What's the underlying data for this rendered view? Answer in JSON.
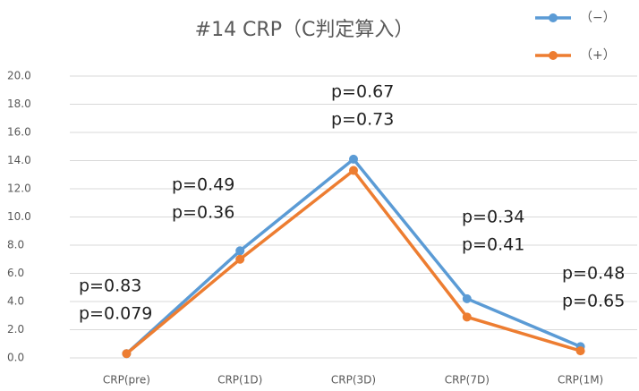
{
  "chart_data": {
    "type": "line",
    "title": "#14 CRP（C判定算入）",
    "categories": [
      "CRP(pre)",
      "CRP(1D)",
      "CRP(3D)",
      "CRP(7D)",
      "CRP(1M)"
    ],
    "series": [
      {
        "name": "（−）",
        "color": "#5b9bd5",
        "values": [
          0.3,
          7.6,
          14.1,
          4.2,
          0.8
        ]
      },
      {
        "name": "（+）",
        "color": "#ed7d31",
        "values": [
          0.3,
          7.0,
          13.3,
          2.9,
          0.5
        ]
      }
    ],
    "annotations": [
      [
        "p=0.83",
        "p=0.079"
      ],
      [
        "p=0.49",
        "p=0.36"
      ],
      [
        "p=0.67",
        "p=0.73"
      ],
      [
        "p=0.34",
        "p=0.41"
      ],
      [
        "p=0.48",
        "p=0.65"
      ]
    ],
    "ylim": [
      0,
      20
    ],
    "yticks": [
      {
        "value": 0,
        "label": "0.0"
      },
      {
        "value": 2,
        "label": "2.0"
      },
      {
        "value": 4,
        "label": "4.0"
      },
      {
        "value": 6,
        "label": "6.0"
      },
      {
        "value": 8,
        "label": "8.0"
      },
      {
        "value": 10,
        "label": "10.0"
      },
      {
        "value": 12,
        "label": "12.0"
      },
      {
        "value": 14,
        "label": "14.0"
      },
      {
        "value": 16,
        "label": "16.0"
      },
      {
        "value": 18,
        "label": "18.0"
      },
      {
        "value": 20,
        "label": "20.0"
      }
    ],
    "grid": true,
    "legend": "top-right"
  }
}
